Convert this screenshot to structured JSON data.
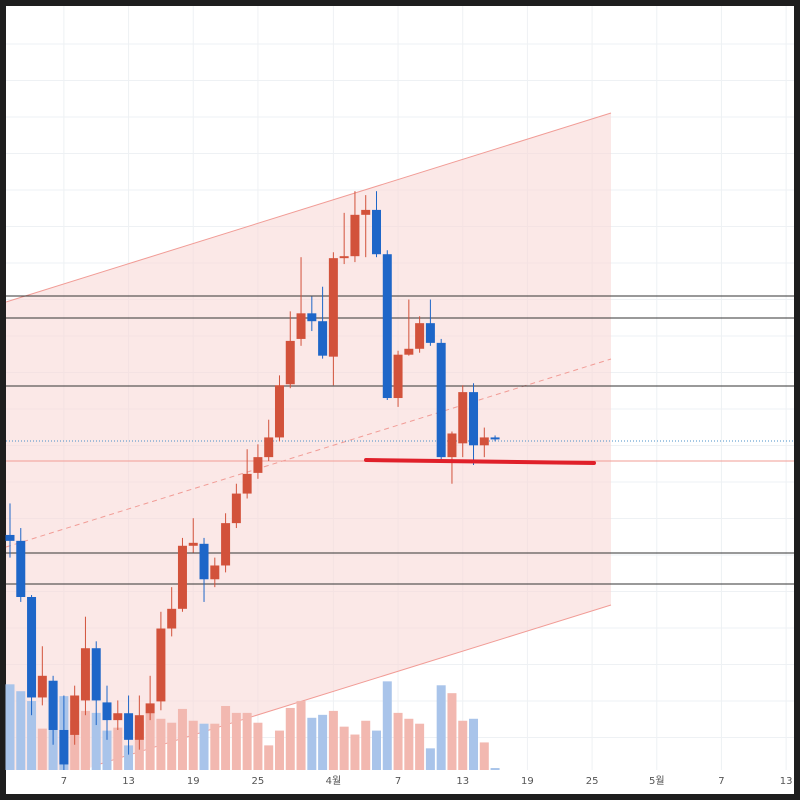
{
  "chart_data": {
    "type": "candlestick",
    "x": [
      0,
      1,
      2,
      3,
      4,
      5,
      6,
      7,
      8,
      9,
      10,
      11,
      12,
      13,
      14,
      15,
      16,
      17,
      18,
      19,
      20,
      21,
      22,
      23,
      24,
      25,
      26,
      27,
      28,
      29,
      30,
      31,
      32,
      33,
      34,
      35,
      36,
      37,
      38,
      39,
      40,
      41,
      42,
      43,
      44,
      45
    ],
    "open": [
      263,
      257,
      200,
      98,
      115,
      65,
      60,
      95,
      148,
      93,
      75,
      82,
      55,
      82,
      94,
      168,
      188,
      252,
      254,
      218,
      232,
      275,
      305,
      326,
      342,
      362,
      416,
      462,
      488,
      480,
      444,
      544,
      546,
      588,
      593,
      548,
      402,
      446,
      452,
      478,
      458,
      342,
      356,
      408,
      354,
      362
    ],
    "high": [
      295,
      270,
      202,
      150,
      120,
      100,
      110,
      180,
      155,
      110,
      95,
      100,
      100,
      120,
      185,
      210,
      260,
      280,
      260,
      240,
      285,
      315,
      350,
      355,
      380,
      425,
      490,
      545,
      505,
      515,
      550,
      590,
      612,
      608,
      612,
      552,
      450,
      502,
      485,
      502,
      462,
      368,
      415,
      417,
      372,
      364
    ],
    "low": [
      240,
      195,
      80,
      90,
      50,
      20,
      50,
      80,
      70,
      55,
      65,
      40,
      45,
      75,
      85,
      160,
      185,
      245,
      195,
      210,
      225,
      270,
      300,
      320,
      338,
      358,
      412,
      455,
      470,
      442,
      415,
      538,
      540,
      545,
      545,
      400,
      393,
      445,
      448,
      455,
      338,
      315,
      342,
      334,
      342,
      358
    ],
    "close": [
      257,
      200,
      98,
      120,
      65,
      30,
      100,
      148,
      95,
      75,
      82,
      55,
      80,
      92,
      168,
      188,
      252,
      255,
      218,
      232,
      275,
      305,
      325,
      342,
      362,
      415,
      460,
      488,
      480,
      445,
      544,
      546,
      588,
      593,
      548,
      402,
      446,
      452,
      478,
      458,
      342,
      366,
      408,
      354,
      362,
      360
    ],
    "volume": [
      87,
      80,
      70,
      42,
      82,
      75,
      50,
      60,
      58,
      40,
      43,
      25,
      50,
      58,
      52,
      48,
      62,
      50,
      47,
      47,
      65,
      58,
      58,
      48,
      25,
      40,
      63,
      70,
      53,
      56,
      60,
      44,
      36,
      50,
      40,
      90,
      58,
      52,
      47,
      22,
      86,
      78,
      50,
      52,
      28,
      2
    ],
    "up_color": "#d2523b",
    "down_color": "#1e66c8",
    "up_volume_color": "#f2b8b0",
    "down_volume_color": "#a9c4ea",
    "xlim": [
      -0.37,
      72.73
    ],
    "ylim": [
      0,
      800
    ],
    "volume_lim": [
      0,
      800
    ],
    "xticks": [
      {
        "value": 5,
        "label": "7"
      },
      {
        "value": 11,
        "label": "13"
      },
      {
        "value": 17,
        "label": "19"
      },
      {
        "value": 23,
        "label": "25"
      },
      {
        "value": 30,
        "label": "4월"
      },
      {
        "value": 36,
        "label": "7"
      },
      {
        "value": 42,
        "label": "13"
      },
      {
        "value": 48,
        "label": "19"
      },
      {
        "value": 54,
        "label": "25"
      },
      {
        "value": 60,
        "label": "5월"
      },
      {
        "value": 66,
        "label": "7"
      },
      {
        "value": 72,
        "label": "13"
      }
    ],
    "grid": true
  }
}
